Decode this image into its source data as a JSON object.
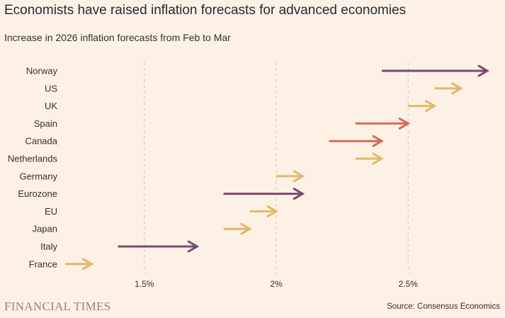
{
  "header": {
    "title": "Economists have raised inflation forecasts for advanced economies",
    "subtitle": "Increase in 2026 inflation forecasts from Feb to Mar"
  },
  "footer": {
    "logo_text": "FINANCIAL TIMES",
    "source": "Source: Consensus Economics"
  },
  "colors": {
    "background": "#fdf1e6",
    "gridline": "#cec6b9",
    "small_increase": "#e3b866",
    "medium_increase": "#d36b5d",
    "large_increase": "#7a4a6d"
  },
  "chart_data": {
    "type": "arrow",
    "title": "Economists have raised inflation forecasts for advanced economies",
    "subtitle": "Increase in 2026 inflation forecasts from Feb to Mar",
    "xlabel": "",
    "ylabel": "",
    "xlim": [
      1.2,
      2.8
    ],
    "x_ticks": [
      1.5,
      2.0,
      2.5
    ],
    "x_tick_labels": [
      "1.5%",
      "2%",
      "2.5%"
    ],
    "grid": "vertical dashed",
    "categories": [
      "Norway",
      "US",
      "UK",
      "Spain",
      "Canada",
      "Netherlands",
      "Germany",
      "Eurozone",
      "EU",
      "Japan",
      "Italy",
      "France"
    ],
    "series": [
      {
        "name": "February forecast",
        "values": [
          2.4,
          2.6,
          2.5,
          2.3,
          2.2,
          2.3,
          2.0,
          1.8,
          1.9,
          1.8,
          1.4,
          1.2
        ]
      },
      {
        "name": "March forecast",
        "values": [
          2.8,
          2.7,
          2.6,
          2.5,
          2.4,
          2.4,
          2.1,
          2.1,
          2.0,
          1.9,
          1.7,
          1.3
        ]
      }
    ],
    "arrow_colors": [
      "#7a4a6d",
      "#e3b866",
      "#e3b866",
      "#d36b5d",
      "#d36b5d",
      "#e3b866",
      "#e3b866",
      "#7a4a6d",
      "#e3b866",
      "#e3b866",
      "#7a4a6d",
      "#e3b866"
    ]
  }
}
